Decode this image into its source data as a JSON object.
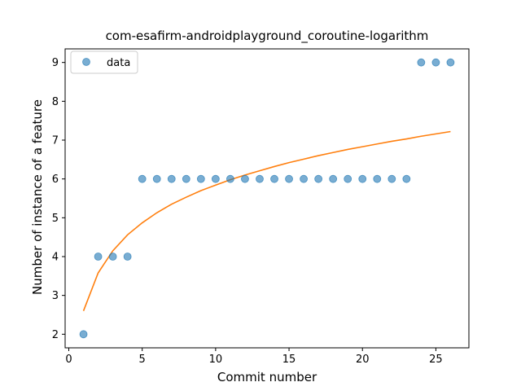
{
  "chart_data": {
    "type": "scatter",
    "title": "com-esafirm-androidplayground_coroutine-logarithm",
    "xlabel": "Commit number",
    "ylabel": "Number of instance of a feature",
    "xlim": [
      -0.25,
      27.25
    ],
    "ylim": [
      1.65,
      9.35
    ],
    "xticks": [
      0,
      5,
      10,
      15,
      20,
      25
    ],
    "yticks": [
      2,
      3,
      4,
      5,
      6,
      7,
      8,
      9
    ],
    "grid": false,
    "legend_position": "top-left",
    "series": [
      {
        "name": "data",
        "kind": "scatter",
        "color": "#1f77b4",
        "x": [
          1,
          2,
          3,
          4,
          5,
          6,
          7,
          8,
          9,
          10,
          11,
          12,
          13,
          14,
          15,
          16,
          17,
          18,
          19,
          20,
          21,
          22,
          23,
          24,
          25,
          26
        ],
        "y": [
          2,
          4,
          4,
          4,
          6,
          6,
          6,
          6,
          6,
          6,
          6,
          6,
          6,
          6,
          6,
          6,
          6,
          6,
          6,
          6,
          6,
          6,
          6,
          9,
          9,
          9
        ]
      },
      {
        "kind": "line",
        "color": "#ff7f0e",
        "x": [
          1,
          2,
          3,
          4,
          5,
          6,
          7,
          8,
          9,
          10,
          11,
          12,
          13,
          14,
          15,
          16,
          17,
          18,
          19,
          20,
          21,
          22,
          23,
          24,
          25,
          26
        ],
        "y": [
          2.6,
          3.58,
          4.15,
          4.56,
          4.87,
          5.13,
          5.35,
          5.53,
          5.7,
          5.84,
          5.98,
          6.1,
          6.21,
          6.32,
          6.42,
          6.51,
          6.6,
          6.68,
          6.76,
          6.83,
          6.9,
          6.97,
          7.03,
          7.1,
          7.16,
          7.22
        ]
      }
    ]
  }
}
